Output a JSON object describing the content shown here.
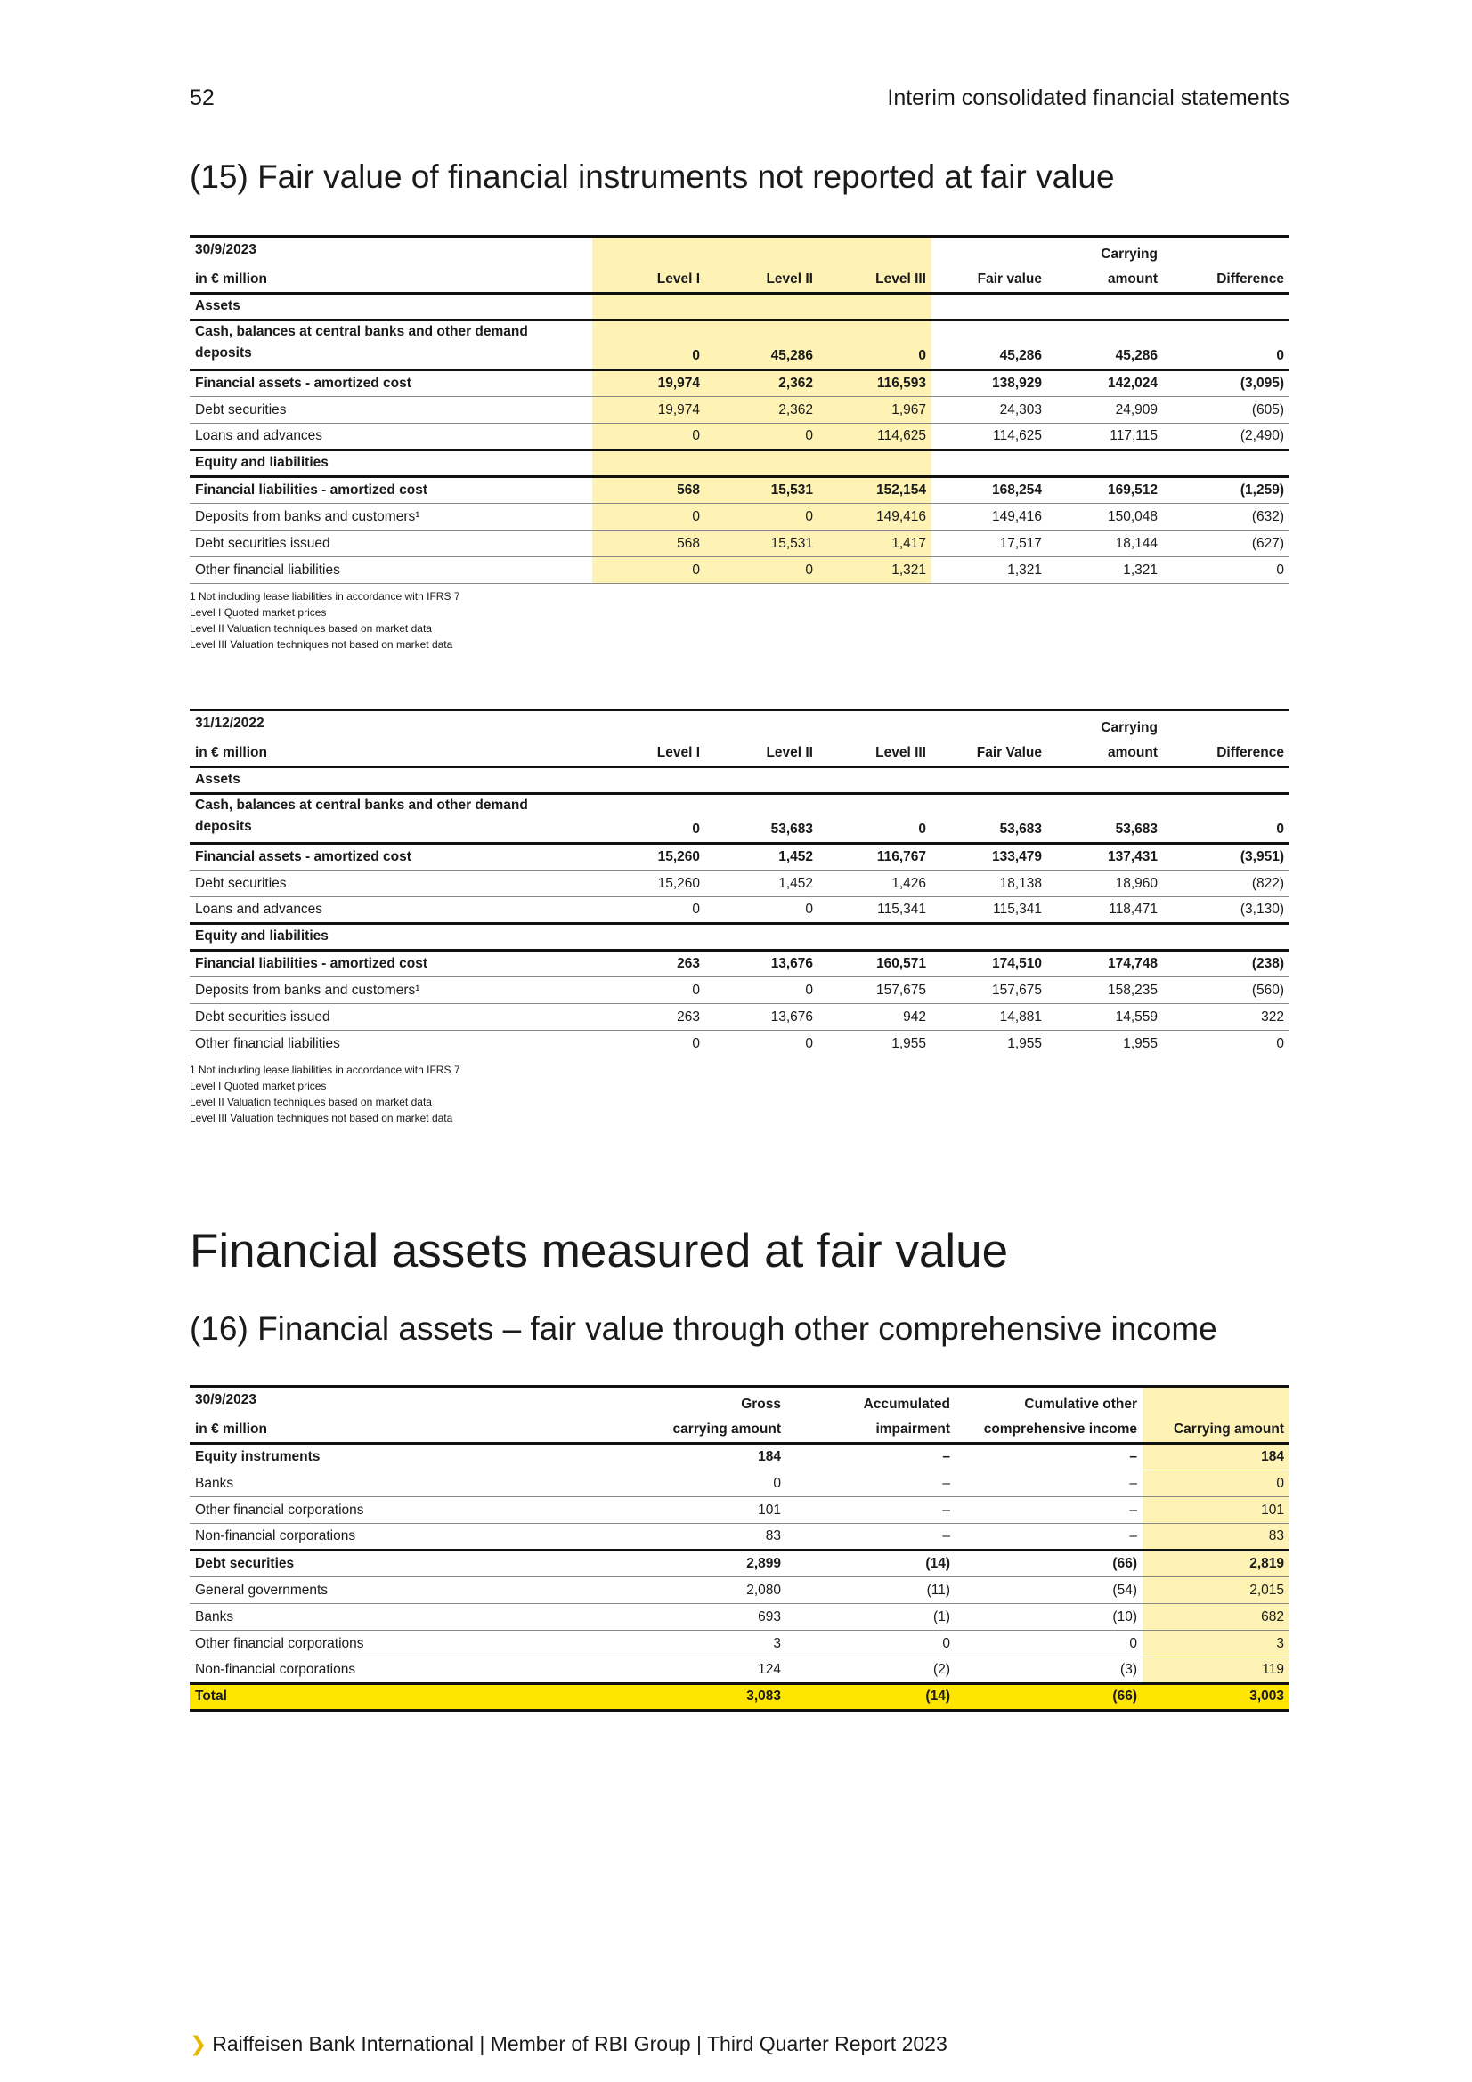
{
  "header": {
    "page_number": "52",
    "title": "Interim consolidated financial statements"
  },
  "section15": {
    "heading": "(15) Fair value of financial instruments not reported at fair value",
    "table1": {
      "date": "30/9/2023",
      "unit": "in € million",
      "cols": [
        "Level I",
        "Level II",
        "Level III",
        "Fair value",
        "Carrying amount",
        "Difference"
      ],
      "carrying_top": "Carrying",
      "carrying_bottom": "amount",
      "rows": [
        {
          "label": "Assets",
          "v": [
            "",
            "",
            "",
            "",
            "",
            ""
          ]
        },
        {
          "label": "Cash, balances at central banks and other demand deposits",
          "v": [
            "0",
            "45,286",
            "0",
            "45,286",
            "45,286",
            "0"
          ]
        },
        {
          "label": "Financial assets - amortized cost",
          "v": [
            "19,974",
            "2,362",
            "116,593",
            "138,929",
            "142,024",
            "(3,095)"
          ]
        },
        {
          "label": "Debt securities",
          "v": [
            "19,974",
            "2,362",
            "1,967",
            "24,303",
            "24,909",
            "(605)"
          ]
        },
        {
          "label": "Loans and advances",
          "v": [
            "0",
            "0",
            "114,625",
            "114,625",
            "117,115",
            "(2,490)"
          ]
        },
        {
          "label": "Equity and liabilities",
          "v": [
            "",
            "",
            "",
            "",
            "",
            ""
          ]
        },
        {
          "label": "Financial liabilities - amortized cost",
          "v": [
            "568",
            "15,531",
            "152,154",
            "168,254",
            "169,512",
            "(1,259)"
          ]
        },
        {
          "label": "Deposits from banks and customers¹",
          "v": [
            "0",
            "0",
            "149,416",
            "149,416",
            "150,048",
            "(632)"
          ]
        },
        {
          "label": "Debt securities issued",
          "v": [
            "568",
            "15,531",
            "1,417",
            "17,517",
            "18,144",
            "(627)"
          ]
        },
        {
          "label": "Other financial liabilities",
          "v": [
            "0",
            "0",
            "1,321",
            "1,321",
            "1,321",
            "0"
          ]
        }
      ],
      "footnotes": [
        "1 Not including lease liabilities in accordance with IFRS 7",
        "Level I Quoted market prices",
        "Level II Valuation techniques based on market data",
        "Level III Valuation techniques not based on market data"
      ]
    },
    "table2": {
      "date": "31/12/2022",
      "unit": "in € million",
      "cols": [
        "Level I",
        "Level II",
        "Level III",
        "Fair Value",
        "Carrying amount",
        "Difference"
      ],
      "carrying_top": "Carrying",
      "carrying_bottom": "amount",
      "rows": [
        {
          "label": "Assets",
          "v": [
            "",
            "",
            "",
            "",
            "",
            ""
          ]
        },
        {
          "label": "Cash, balances at central banks and other demand deposits",
          "v": [
            "0",
            "53,683",
            "0",
            "53,683",
            "53,683",
            "0"
          ]
        },
        {
          "label": "Financial assets - amortized cost",
          "v": [
            "15,260",
            "1,452",
            "116,767",
            "133,479",
            "137,431",
            "(3,951)"
          ]
        },
        {
          "label": "Debt securities",
          "v": [
            "15,260",
            "1,452",
            "1,426",
            "18,138",
            "18,960",
            "(822)"
          ]
        },
        {
          "label": "Loans and advances",
          "v": [
            "0",
            "0",
            "115,341",
            "115,341",
            "118,471",
            "(3,130)"
          ]
        },
        {
          "label": "Equity and liabilities",
          "v": [
            "",
            "",
            "",
            "",
            "",
            ""
          ]
        },
        {
          "label": "Financial liabilities - amortized cost",
          "v": [
            "263",
            "13,676",
            "160,571",
            "174,510",
            "174,748",
            "(238)"
          ]
        },
        {
          "label": "Deposits from banks and customers¹",
          "v": [
            "0",
            "0",
            "157,675",
            "157,675",
            "158,235",
            "(560)"
          ]
        },
        {
          "label": "Debt securities issued",
          "v": [
            "263",
            "13,676",
            "942",
            "14,881",
            "14,559",
            "322"
          ]
        },
        {
          "label": "Other financial liabilities",
          "v": [
            "0",
            "0",
            "1,955",
            "1,955",
            "1,955",
            "0"
          ]
        }
      ],
      "footnotes": [
        "1 Not including lease liabilities in accordance with IFRS 7",
        "Level I Quoted market prices",
        "Level II Valuation techniques based on market data",
        "Level III Valuation techniques not based on market data"
      ]
    }
  },
  "main_heading": "Financial assets measured at fair value",
  "section16": {
    "heading": "(16) Financial assets – fair value through other comprehensive income",
    "table": {
      "date": "30/9/2023",
      "unit": "in € million",
      "col_tops": [
        "Gross",
        "Accumulated",
        "Cumulative other",
        ""
      ],
      "col_bottoms": [
        "carrying amount",
        "impairment",
        "comprehensive income",
        "Carrying amount"
      ],
      "rows": [
        {
          "label": "Equity instruments",
          "v": [
            "184",
            "–",
            "–",
            "184"
          ]
        },
        {
          "label": "Banks",
          "v": [
            "0",
            "–",
            "–",
            "0"
          ]
        },
        {
          "label": "Other financial corporations",
          "v": [
            "101",
            "–",
            "–",
            "101"
          ]
        },
        {
          "label": "Non-financial corporations",
          "v": [
            "83",
            "–",
            "–",
            "83"
          ]
        },
        {
          "label": "Debt securities",
          "v": [
            "2,899",
            "(14)",
            "(66)",
            "2,819"
          ]
        },
        {
          "label": "General governments",
          "v": [
            "2,080",
            "(11)",
            "(54)",
            "2,015"
          ]
        },
        {
          "label": "Banks",
          "v": [
            "693",
            "(1)",
            "(10)",
            "682"
          ]
        },
        {
          "label": "Other financial corporations",
          "v": [
            "3",
            "0",
            "0",
            "3"
          ]
        },
        {
          "label": "Non-financial corporations",
          "v": [
            "124",
            "(2)",
            "(3)",
            "119"
          ]
        }
      ],
      "total": {
        "label": "Total",
        "v": [
          "3,083",
          "(14)",
          "(66)",
          "3,003"
        ]
      }
    }
  },
  "footer": {
    "text": "Raiffeisen Bank International | Member of RBI Group | Third Quarter Report 2023"
  }
}
